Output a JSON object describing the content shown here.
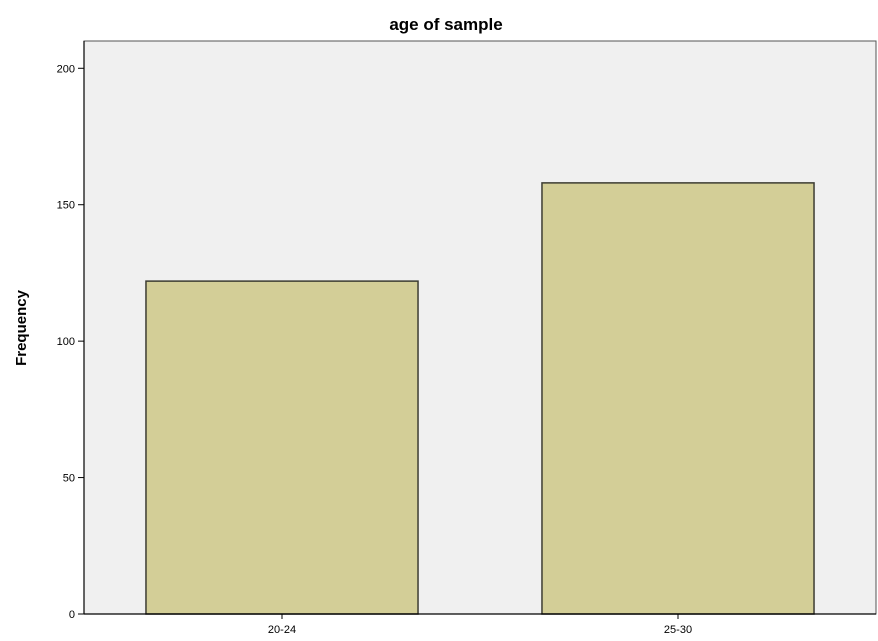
{
  "chart_data": {
    "type": "bar",
    "title": "age of sample",
    "xlabel": "",
    "ylabel": "Frequency",
    "categories": [
      "20-24",
      "25-30"
    ],
    "values": [
      122,
      158
    ],
    "ylim": [
      0,
      210
    ],
    "yticks": [
      0,
      50,
      100,
      150,
      200
    ],
    "grid": false,
    "legend": "none",
    "colors": {
      "plot_background": "#f0f0f0",
      "bar_fill": "#d3ce97",
      "bar_stroke": "#3c3c32",
      "axis": "#000000"
    }
  }
}
